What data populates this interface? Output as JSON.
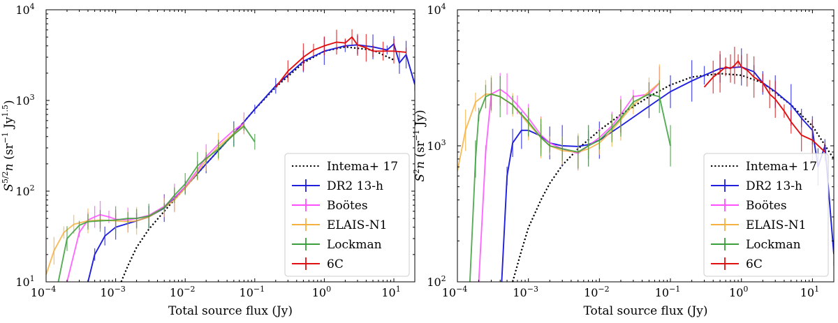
{
  "chart_data": [
    {
      "type": "line",
      "panel": "left",
      "xlabel": "Total source flux (Jy)",
      "ylabel": "S^{5/2} n (sr^{-1} Jy^{1.5})",
      "ylabel_parts": {
        "base": "S",
        "exp": "5/2",
        "rest": "n (sr",
        "exp2": "−1",
        "unit": " Jy",
        "exp3": "1.5",
        "close": ")"
      },
      "xscale": "log",
      "yscale": "log",
      "xlim": [
        0.0001,
        20
      ],
      "ylim": [
        10,
        10000
      ],
      "xticks": [
        {
          "value": 0.0001,
          "base": "10",
          "exp": "−4"
        },
        {
          "value": 0.001,
          "base": "10",
          "exp": "−3"
        },
        {
          "value": 0.01,
          "base": "10",
          "exp": "−2"
        },
        {
          "value": 0.1,
          "base": "10",
          "exp": "−1"
        },
        {
          "value": 1,
          "base": "10",
          "exp": "0"
        },
        {
          "value": 10,
          "base": "10",
          "exp": "1"
        }
      ],
      "yticks": [
        {
          "value": 10,
          "base": "10",
          "exp": "1"
        },
        {
          "value": 100,
          "base": "10",
          "exp": "2"
        },
        {
          "value": 1000,
          "base": "10",
          "exp": "3"
        },
        {
          "value": 10000,
          "base": "10",
          "exp": "4"
        }
      ],
      "legend_position": "lower-right",
      "series": [
        {
          "name": "Intema+ 17",
          "color": "#000000",
          "style": "dotted",
          "x": [
            0.0012,
            0.0015,
            0.002,
            0.003,
            0.005,
            0.01,
            0.02,
            0.05,
            0.1,
            0.2,
            0.5,
            1,
            2,
            5,
            10
          ],
          "y": [
            10,
            15,
            24,
            38,
            60,
            110,
            200,
            430,
            800,
            1400,
            2600,
            3500,
            3900,
            3600,
            2800
          ]
        },
        {
          "name": "DR2 13-h",
          "color": "#1f1fdc",
          "style": "solid",
          "x": [
            0.0004,
            0.0005,
            0.0007,
            0.001,
            0.0015,
            0.002,
            0.003,
            0.005,
            0.01,
            0.02,
            0.05,
            0.1,
            0.2,
            0.5,
            1,
            2,
            3,
            5,
            8,
            10,
            12,
            15,
            20
          ],
          "y": [
            10,
            20,
            32,
            40,
            44,
            47,
            52,
            65,
            110,
            200,
            430,
            800,
            1450,
            2700,
            3500,
            4000,
            4100,
            3900,
            3600,
            4200,
            2600,
            3200,
            1500
          ]
        },
        {
          "name": "Boötes",
          "color": "#ff4fff",
          "style": "solid",
          "x": [
            0.0002,
            0.0003,
            0.0004,
            0.0005,
            0.0006,
            0.0008,
            0.001,
            0.0015,
            0.002,
            0.003,
            0.005,
            0.007,
            0.01,
            0.015,
            0.02,
            0.03,
            0.05,
            0.07
          ],
          "y": [
            10,
            35,
            48,
            52,
            55,
            52,
            49,
            48,
            50,
            54,
            68,
            85,
            112,
            170,
            240,
            330,
            470,
            560
          ]
        },
        {
          "name": "ELAIS-N1",
          "color": "#f5b042",
          "style": "solid",
          "x": [
            0.0001,
            0.00013,
            0.00018,
            0.00025,
            0.0004,
            0.0006,
            0.001,
            0.0015,
            0.002,
            0.003,
            0.005,
            0.007,
            0.01,
            0.015,
            0.02,
            0.03,
            0.05,
            0.07
          ],
          "y": [
            12,
            22,
            35,
            43,
            47,
            48,
            47,
            46,
            47,
            52,
            66,
            80,
            108,
            160,
            220,
            310,
            430,
            540
          ]
        },
        {
          "name": "Lockman",
          "color": "#3a9e3a",
          "style": "solid",
          "x": [
            0.00015,
            0.0002,
            0.0003,
            0.0004,
            0.0006,
            0.001,
            0.0015,
            0.002,
            0.003,
            0.005,
            0.007,
            0.01,
            0.015,
            0.02,
            0.03,
            0.05,
            0.07,
            0.1
          ],
          "y": [
            10,
            30,
            42,
            46,
            47,
            48,
            50,
            50,
            53,
            66,
            90,
            120,
            190,
            230,
            290,
            420,
            520,
            350
          ]
        },
        {
          "name": "6C",
          "color": "#e01010",
          "style": "solid",
          "x": [
            0.2,
            0.3,
            0.5,
            0.7,
            1,
            1.5,
            2,
            2.5,
            3,
            4,
            5,
            7,
            10,
            15
          ],
          "y": [
            1400,
            2100,
            3000,
            3600,
            4000,
            4400,
            4300,
            5000,
            4100,
            3800,
            3500,
            3500,
            3500,
            3400
          ]
        }
      ]
    },
    {
      "type": "line",
      "panel": "right",
      "xlabel": "Total source flux (Jy)",
      "ylabel": "S^2 n (sr^{-1} Jy)",
      "ylabel_parts": {
        "base": "S",
        "exp": "2",
        "rest": "n (sr",
        "exp2": "−1",
        "unit": " Jy",
        "exp3": "",
        "close": ")"
      },
      "xscale": "log",
      "yscale": "log",
      "xlim": [
        0.0001,
        20
      ],
      "ylim": [
        100,
        10000
      ],
      "xticks": [
        {
          "value": 0.0001,
          "base": "10",
          "exp": "−4"
        },
        {
          "value": 0.001,
          "base": "10",
          "exp": "−3"
        },
        {
          "value": 0.01,
          "base": "10",
          "exp": "−2"
        },
        {
          "value": 0.1,
          "base": "10",
          "exp": "−1"
        },
        {
          "value": 1,
          "base": "10",
          "exp": "0"
        },
        {
          "value": 10,
          "base": "10",
          "exp": "1"
        }
      ],
      "yticks": [
        {
          "value": 100,
          "base": "10",
          "exp": "2"
        },
        {
          "value": 1000,
          "base": "10",
          "exp": "3"
        },
        {
          "value": 10000,
          "base": "10",
          "exp": "4"
        }
      ],
      "legend_position": "lower-right",
      "series": [
        {
          "name": "Intema+ 17",
          "color": "#000000",
          "style": "dotted",
          "x": [
            0.0006,
            0.0008,
            0.001,
            0.0015,
            0.002,
            0.003,
            0.005,
            0.01,
            0.02,
            0.05,
            0.1,
            0.2,
            0.5,
            1,
            2,
            5,
            10,
            20
          ],
          "y": [
            100,
            170,
            250,
            400,
            530,
            720,
            950,
            1300,
            1700,
            2300,
            2800,
            3200,
            3400,
            3300,
            2900,
            2000,
            1400,
            800
          ]
        },
        {
          "name": "DR2 13-h",
          "color": "#1f1fdc",
          "style": "solid",
          "x": [
            0.00042,
            0.0005,
            0.0006,
            0.0008,
            0.001,
            0.0015,
            0.002,
            0.003,
            0.005,
            0.007,
            0.01,
            0.02,
            0.05,
            0.1,
            0.2,
            0.3,
            0.5,
            1,
            1.5,
            2,
            3,
            5,
            7,
            10,
            12,
            15,
            20
          ],
          "y": [
            100,
            600,
            1050,
            1300,
            1300,
            1180,
            1050,
            1000,
            990,
            1020,
            1100,
            1400,
            1950,
            2500,
            3000,
            3300,
            3700,
            3800,
            3500,
            2900,
            2500,
            2000,
            1600,
            1300,
            700,
            1000,
            160
          ]
        },
        {
          "name": "Boötes",
          "color": "#ff4fff",
          "style": "solid",
          "x": [
            0.0002,
            0.00025,
            0.0003,
            0.0004,
            0.0005,
            0.0007,
            0.001,
            0.0015,
            0.002,
            0.003,
            0.005,
            0.007,
            0.01,
            0.015,
            0.02,
            0.03,
            0.05,
            0.07
          ],
          "y": [
            100,
            900,
            2400,
            2600,
            2400,
            2000,
            1600,
            1200,
            1050,
            950,
            880,
            1000,
            1150,
            1400,
            1700,
            2300,
            2400,
            2900
          ]
        },
        {
          "name": "ELAIS-N1",
          "color": "#f5b042",
          "style": "solid",
          "x": [
            0.0001,
            0.00013,
            0.00018,
            0.00025,
            0.0003,
            0.0004,
            0.0006,
            0.001,
            0.0015,
            0.002,
            0.003,
            0.005,
            0.007,
            0.01,
            0.015,
            0.02,
            0.03,
            0.05,
            0.07
          ],
          "y": [
            650,
            1300,
            2100,
            2400,
            2400,
            2300,
            2000,
            1450,
            1150,
            1000,
            920,
            900,
            950,
            1050,
            1300,
            1550,
            2000,
            2500,
            2900
          ]
        },
        {
          "name": "Lockman",
          "color": "#3a9e3a",
          "style": "solid",
          "x": [
            0.00015,
            0.00018,
            0.0002,
            0.00025,
            0.0003,
            0.0004,
            0.0006,
            0.001,
            0.0015,
            0.002,
            0.003,
            0.005,
            0.007,
            0.01,
            0.015,
            0.02,
            0.03,
            0.05,
            0.07,
            0.1
          ],
          "y": [
            100,
            800,
            1700,
            2300,
            2400,
            2300,
            2000,
            1500,
            1150,
            1000,
            950,
            900,
            1000,
            1100,
            1350,
            1600,
            2100,
            2400,
            2300,
            1000
          ]
        },
        {
          "name": "6C",
          "color": "#e01010",
          "style": "solid",
          "x": [
            0.3,
            0.4,
            0.5,
            0.6,
            0.7,
            0.8,
            0.9,
            1,
            1.2,
            1.5,
            2,
            2.5,
            3,
            4,
            5,
            7,
            10,
            15
          ],
          "y": [
            2700,
            3200,
            3500,
            3800,
            3700,
            3900,
            4200,
            3800,
            3600,
            3200,
            2900,
            2400,
            2200,
            1800,
            1500,
            1200,
            1100,
            900
          ]
        }
      ]
    }
  ]
}
